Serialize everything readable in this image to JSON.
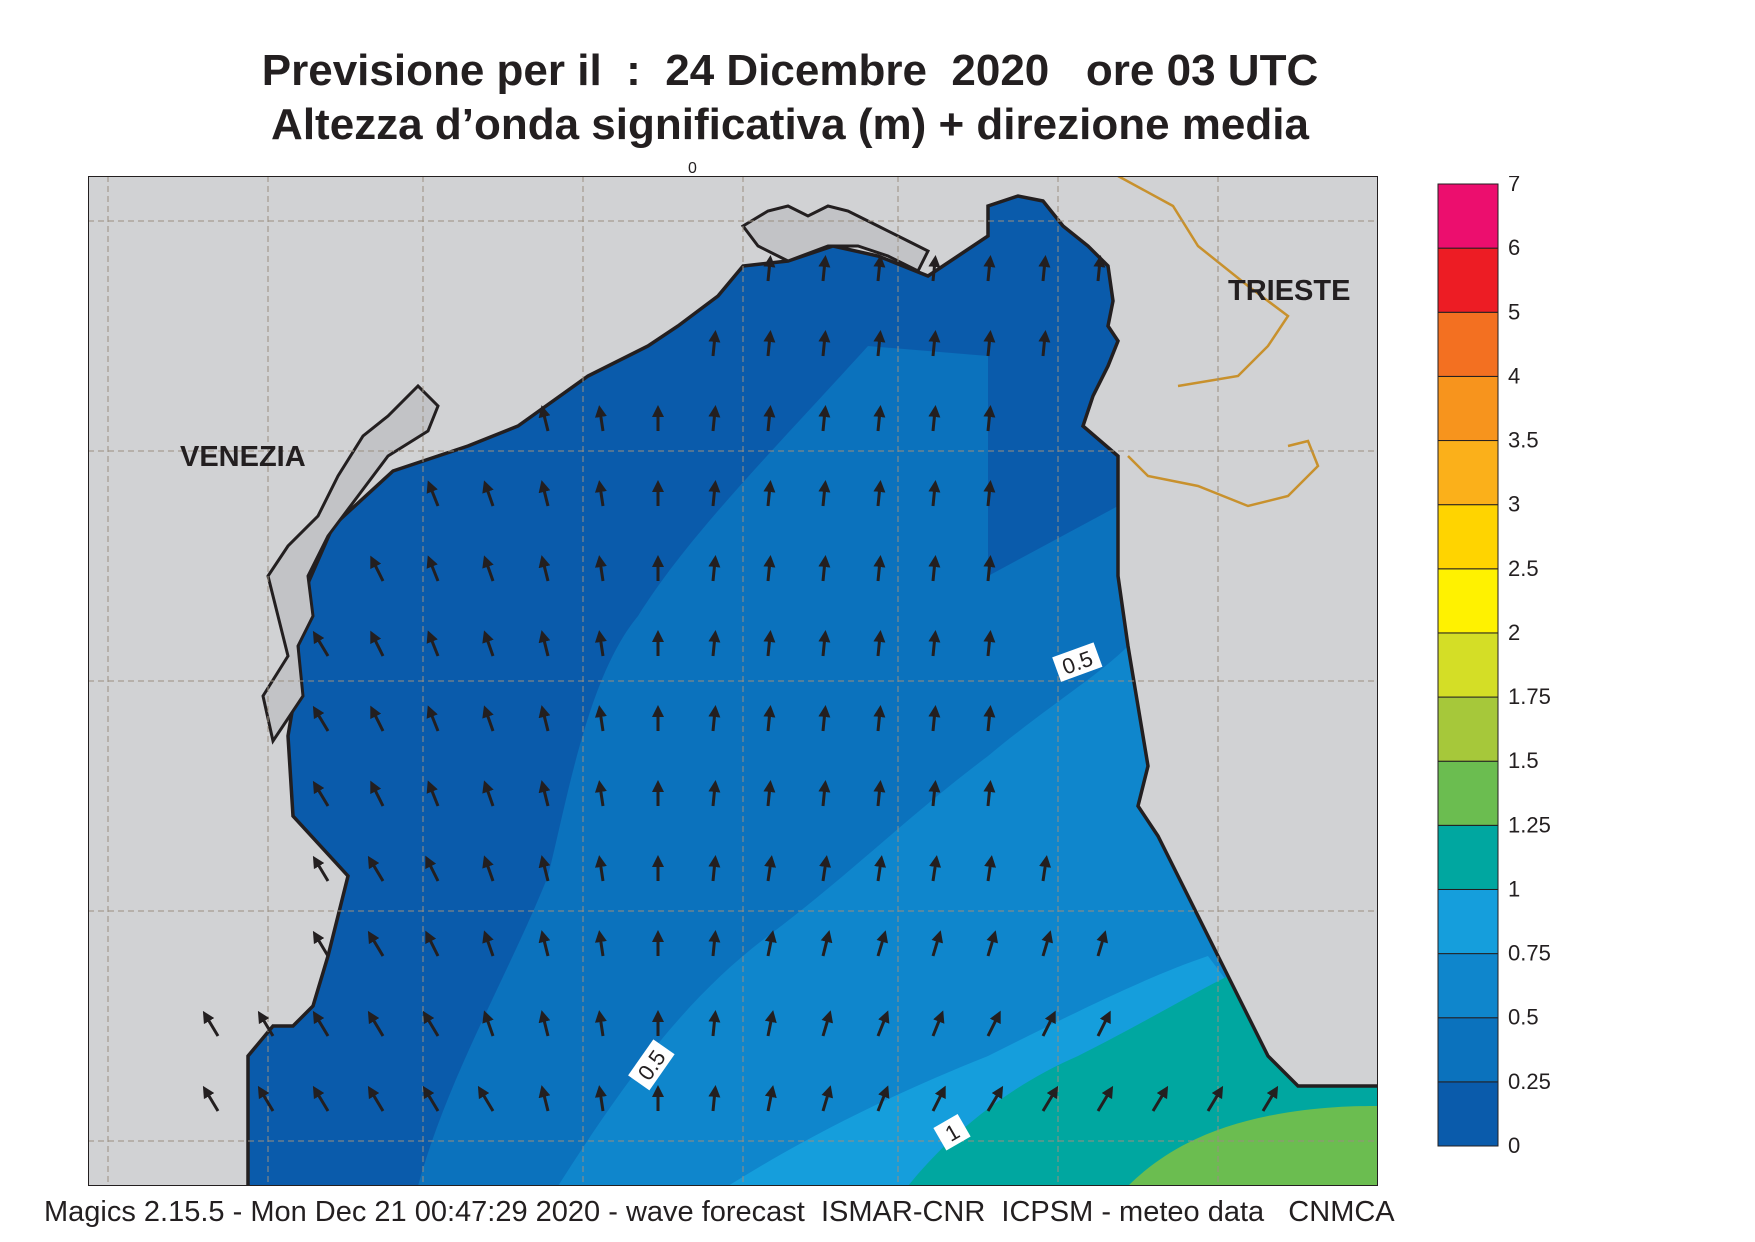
{
  "title": {
    "line1": "Previsione per il  :  24 Dicembre  2020   ore 03 UTC",
    "line2": "Altezza d’onda significativa (m) + direzione media"
  },
  "map": {
    "labels": {
      "venezia": "VENEZIA",
      "trieste": "TRIESTE"
    },
    "contour_labels": [
      "0.5",
      "0.5",
      "1"
    ],
    "top_tick": "0",
    "colors": {
      "land": "#d1d2d4",
      "coast": "#231f20",
      "border": "#c8912d",
      "grid": "#9a8f80",
      "arrow": "#231f20"
    }
  },
  "legend": {
    "levels": [
      {
        "value": "0",
        "color": "#0a5bab"
      },
      {
        "value": "0.25",
        "color": "#0b72bd"
      },
      {
        "value": "0.5",
        "color": "#0f86cc"
      },
      {
        "value": "0.75",
        "color": "#159edc"
      },
      {
        "value": "1",
        "color": "#00a7a0"
      },
      {
        "value": "1.25",
        "color": "#6bbd50"
      },
      {
        "value": "1.5",
        "color": "#a6c83a"
      },
      {
        "value": "1.75",
        "color": "#d4de26"
      },
      {
        "value": "2",
        "color": "#fff200"
      },
      {
        "value": "2.5",
        "color": "#ffd400"
      },
      {
        "value": "3",
        "color": "#fbb01a"
      },
      {
        "value": "3.5",
        "color": "#f7941d"
      },
      {
        "value": "4",
        "color": "#f37021"
      },
      {
        "value": "5",
        "color": "#ed1c24"
      },
      {
        "value": "6",
        "color": "#ec0e6e"
      },
      {
        "value": "7",
        "color": ""
      }
    ]
  },
  "footer": "Magics 2.15.5 - Mon Dec 21 00:47:29 2020 - wave forecast  ISMAR-CNR  ICPSM - meteo data   CNMCA"
}
